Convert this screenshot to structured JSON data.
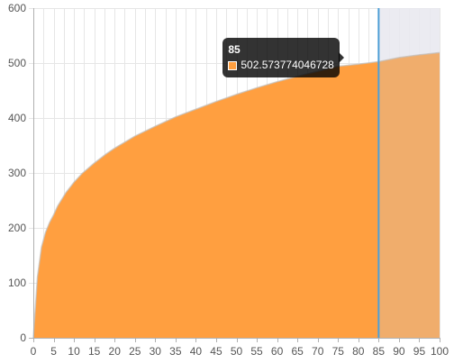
{
  "chart_data": {
    "type": "area",
    "title": "",
    "xlabel": "",
    "ylabel": "",
    "xlim": [
      0,
      100
    ],
    "ylim": [
      0,
      600
    ],
    "x_ticks": [
      "0",
      "5",
      "10",
      "15",
      "20",
      "25",
      "30",
      "35",
      "40",
      "45",
      "50",
      "55",
      "60",
      "65",
      "70",
      "75",
      "80",
      "85",
      "90",
      "95",
      "100"
    ],
    "y_ticks": [
      "0",
      "100",
      "200",
      "300",
      "400",
      "500",
      "600"
    ],
    "grid": true,
    "legend": "none",
    "series": [
      {
        "color": "#ff9f40",
        "x": [
          0,
          1,
          2,
          3,
          4,
          5,
          6,
          8,
          10,
          12,
          15,
          18,
          20,
          25,
          30,
          35,
          40,
          45,
          50,
          55,
          60,
          65,
          70,
          75,
          80,
          85,
          90,
          95,
          100
        ],
        "values": [
          0,
          110,
          165,
          192,
          210,
          224,
          240,
          264,
          283,
          299,
          318,
          335,
          345,
          367,
          385,
          402,
          416,
          430,
          443,
          455,
          466,
          476,
          485,
          494,
          498,
          502.573774046728,
          510,
          515,
          519
        ]
      }
    ],
    "hover": {
      "x_value": 85,
      "shade_color": "#e8e8ee",
      "line_color": "#4d9fd6"
    },
    "tooltip": {
      "title": "85",
      "value": "502.573774046728"
    }
  }
}
